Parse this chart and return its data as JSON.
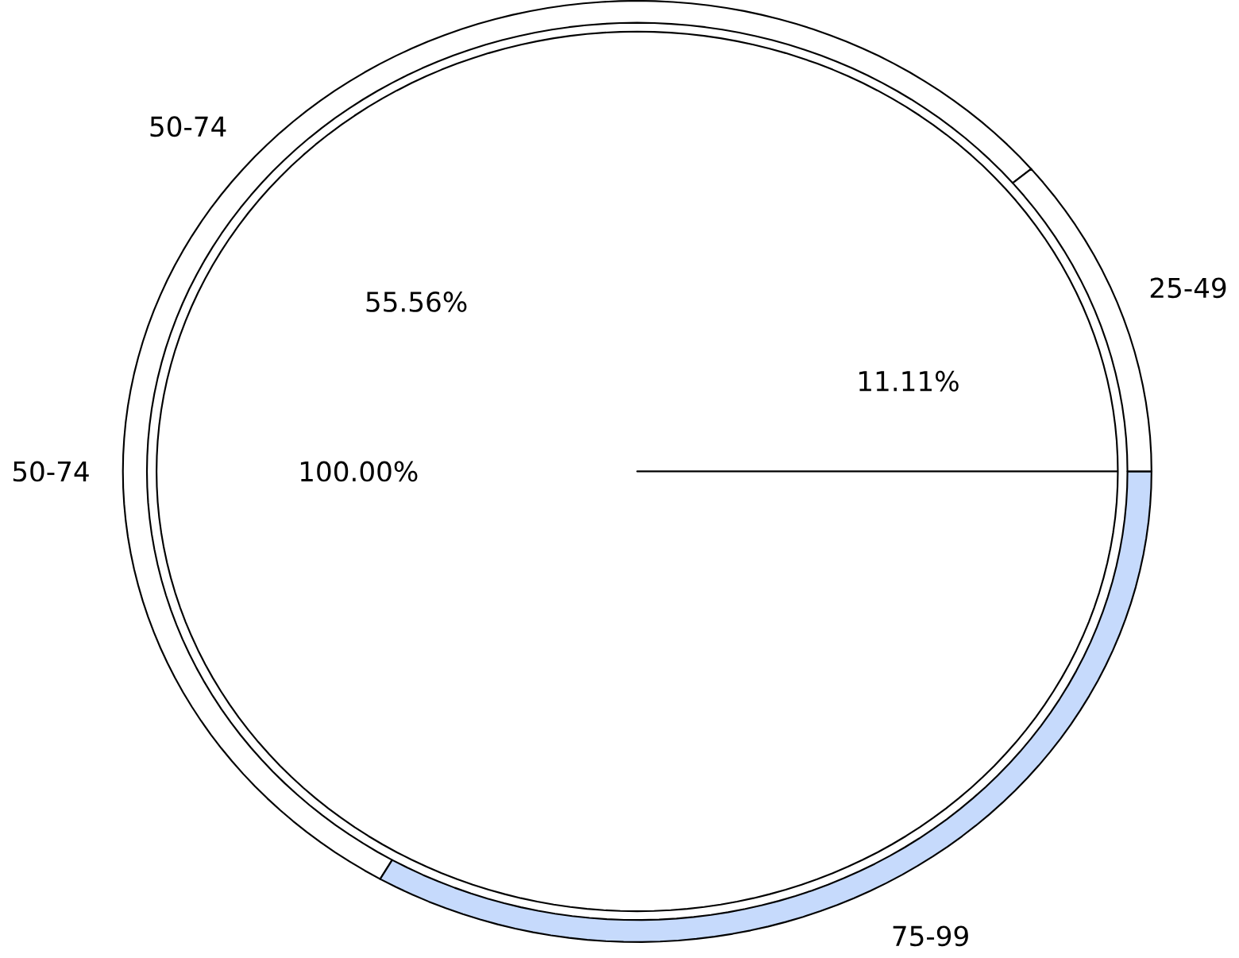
{
  "chart_data": [
    {
      "type": "pie",
      "categories": [
        "50-74"
      ],
      "values": [
        100
      ],
      "colors": [
        "#ffffff"
      ],
      "value_labels": [
        "100.00%"
      ]
    },
    {
      "type": "donut",
      "categories": [
        "50-74",
        "75-99",
        "25-49"
      ],
      "values": [
        55.56,
        33.33,
        11.11
      ],
      "colors": [
        "#ffffff",
        "#c6dafc",
        "#ffffff"
      ],
      "value_labels": [
        "55.56%",
        null,
        "11.11%"
      ]
    }
  ]
}
